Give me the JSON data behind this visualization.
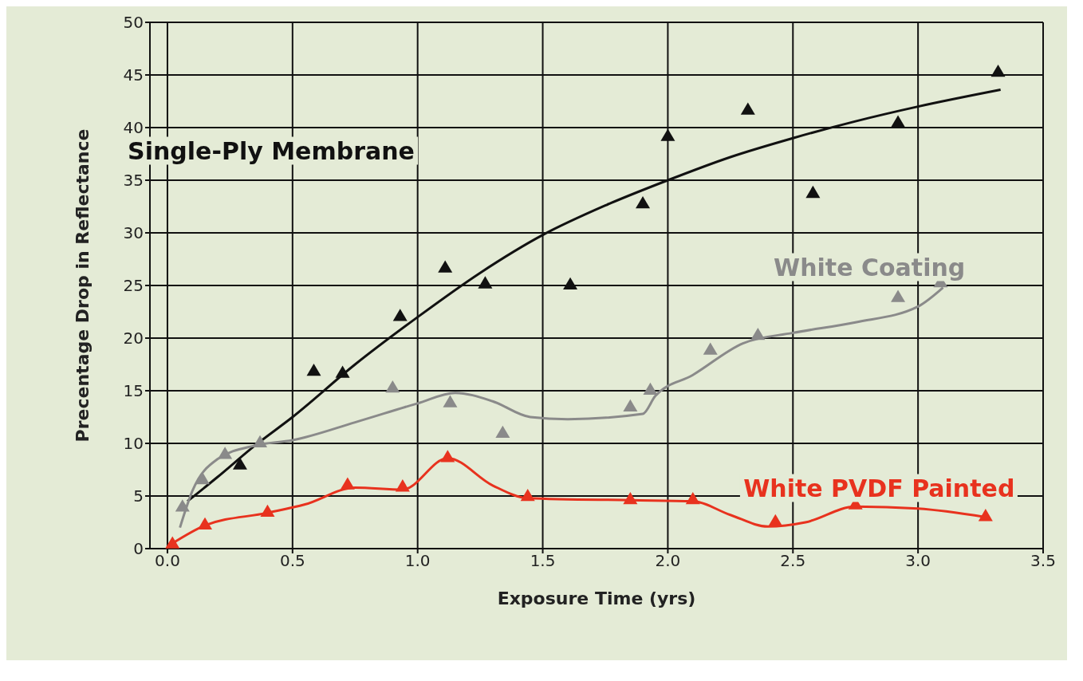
{
  "chart_data": {
    "type": "scatter",
    "xlabel": "Exposure Time (yrs)",
    "ylabel": "Precentage Drop in Reflectance",
    "xlim": [
      -0.07,
      3.5
    ],
    "ylim": [
      0,
      50
    ],
    "xticks": [
      {
        "value": 0,
        "label": "0.0"
      },
      {
        "value": 0.5,
        "label": "0.5"
      },
      {
        "value": 1,
        "label": "1.0"
      },
      {
        "value": 1.5,
        "label": "1.5"
      },
      {
        "value": 2,
        "label": "2.0"
      },
      {
        "value": 2.5,
        "label": "2.5"
      },
      {
        "value": 3,
        "label": "3.0"
      },
      {
        "value": 3.5,
        "label": "3.5"
      }
    ],
    "yticks": [
      0,
      5,
      10,
      15,
      20,
      25,
      30,
      35,
      40,
      45,
      50
    ],
    "grid": true,
    "marker": "triangle",
    "series": [
      {
        "name": "Single-Ply Membrane",
        "color": "#111111",
        "x": [
          0.29,
          0.585,
          0.7,
          0.93,
          1.11,
          1.27,
          1.61,
          1.9,
          2.0,
          2.32,
          2.58,
          2.92,
          3.32
        ],
        "values": [
          8.0,
          16.9,
          16.7,
          22.1,
          26.7,
          25.2,
          25.1,
          32.8,
          39.2,
          41.7,
          33.8,
          40.5,
          45.3
        ]
      },
      {
        "name": "White Coating",
        "color": "#8a8a8a",
        "x": [
          0.06,
          0.14,
          0.23,
          0.37,
          0.9,
          1.13,
          1.34,
          1.85,
          1.93,
          2.17,
          2.36,
          2.92,
          3.09
        ],
        "values": [
          4.0,
          6.6,
          9.0,
          10.1,
          15.3,
          13.9,
          11.0,
          13.5,
          15.1,
          18.9,
          20.3,
          23.9,
          25.3
        ]
      },
      {
        "name": "White PVDF Painted",
        "color": "#e8321e",
        "x": [
          0.02,
          0.15,
          0.4,
          0.72,
          0.94,
          1.12,
          1.44,
          1.85,
          2.1,
          2.43,
          2.75,
          3.27
        ],
        "values": [
          0.5,
          2.3,
          3.5,
          6.1,
          5.9,
          8.7,
          5.0,
          4.7,
          4.7,
          2.6,
          4.2,
          3.1
        ]
      },
      {
        "type": "line",
        "marker": "none",
        "color": "#111111",
        "x": [
          0.08,
          0.2,
          0.35,
          0.5,
          0.75,
          1.0,
          1.25,
          1.5,
          1.75,
          2.0,
          2.25,
          2.5,
          2.75,
          3.0,
          3.33
        ],
        "values": [
          4.5,
          6.8,
          9.8,
          12.5,
          17.5,
          22,
          26.2,
          29.8,
          32.6,
          35,
          37.2,
          39,
          40.6,
          42,
          43.6
        ]
      },
      {
        "type": "line",
        "marker": "none",
        "color": "#8a8a8a",
        "x": [
          0.05,
          0.1,
          0.2,
          0.35,
          0.5,
          0.75,
          1.0,
          1.15,
          1.3,
          1.45,
          1.6,
          1.9,
          1.95,
          2.1,
          2.3,
          2.5,
          2.75,
          3.0,
          3.1
        ],
        "values": [
          2,
          5.5,
          8.5,
          9.8,
          10.3,
          12,
          13.8,
          14.8,
          14,
          12.5,
          12.3,
          12.8,
          14.5,
          16.5,
          19.5,
          20.5,
          21.5,
          23,
          24.8
        ]
      },
      {
        "type": "line",
        "marker": "none",
        "color": "#e8321e",
        "x": [
          0.02,
          0.15,
          0.4,
          0.55,
          0.75,
          0.94,
          1.12,
          1.3,
          1.44,
          1.85,
          2.1,
          2.25,
          2.4,
          2.55,
          2.75,
          3.0,
          3.27
        ],
        "values": [
          0.5,
          2.2,
          3.4,
          4.2,
          5.8,
          5.6,
          8.6,
          6,
          4.8,
          4.6,
          4.5,
          3.2,
          2.1,
          2.5,
          4.0,
          3.8,
          3.0
        ]
      }
    ]
  }
}
